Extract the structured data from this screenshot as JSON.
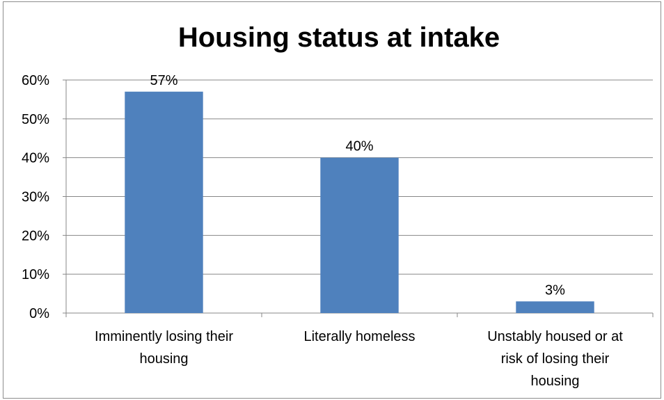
{
  "chart_data": {
    "type": "bar",
    "title": "Housing status at intake",
    "xlabel": "",
    "ylabel": "",
    "categories": [
      [
        "Imminently losing their",
        "housing"
      ],
      [
        "Literally homeless"
      ],
      [
        "Unstably housed or at",
        "risk of losing their",
        "housing"
      ]
    ],
    "values": [
      57,
      40,
      3
    ],
    "value_labels": [
      "57%",
      "40%",
      "3%"
    ],
    "ylim": [
      0,
      60
    ],
    "yticks": [
      0,
      10,
      20,
      30,
      40,
      50,
      60
    ],
    "ytick_labels": [
      "0%",
      "10%",
      "20%",
      "30%",
      "40%",
      "50%",
      "60%"
    ],
    "grid": true,
    "legend": "none",
    "bar_color": "#4f81bd",
    "grid_color": "#878787"
  }
}
